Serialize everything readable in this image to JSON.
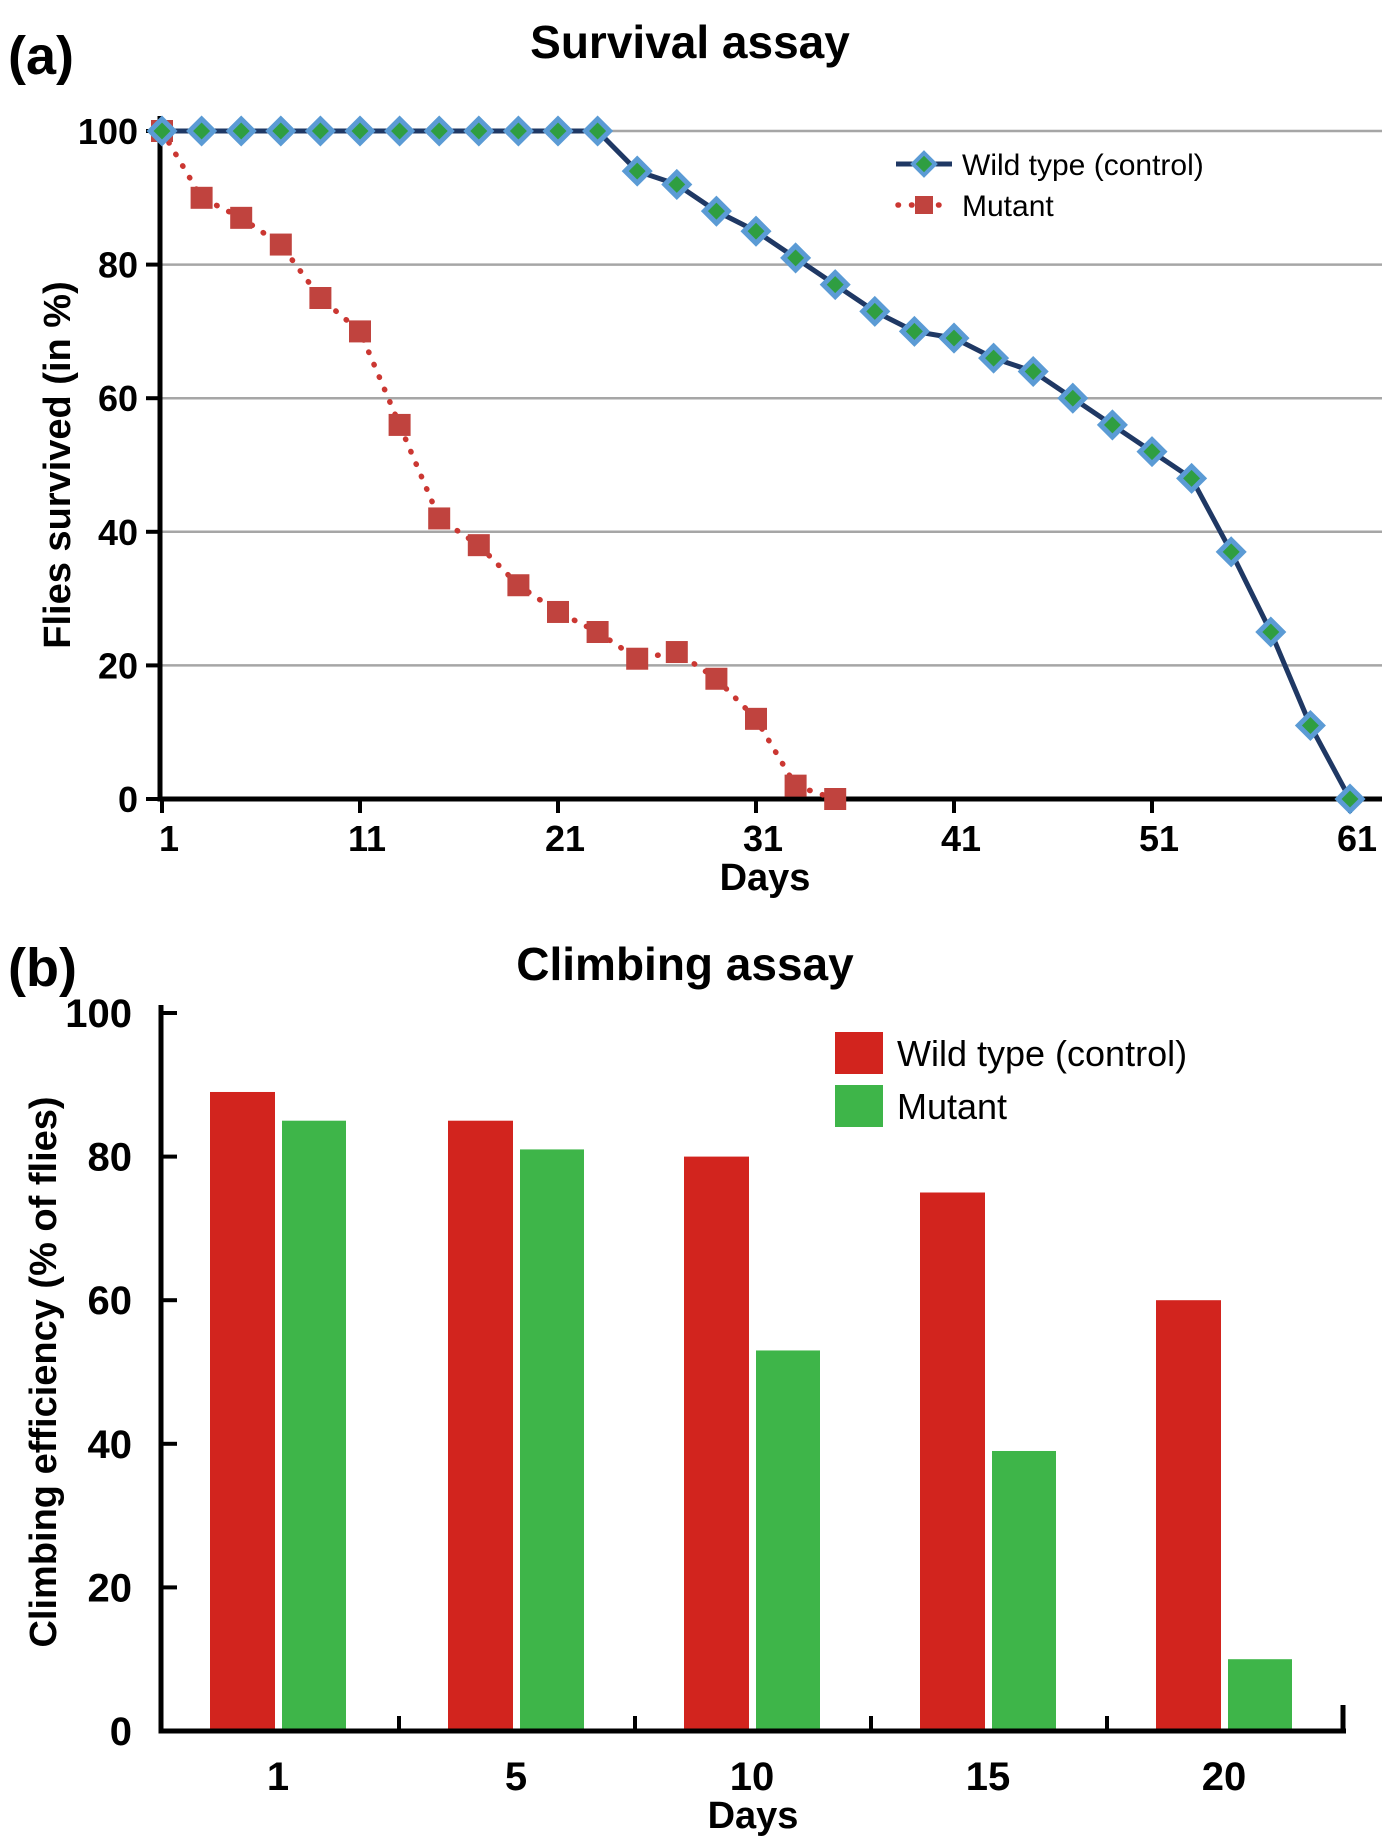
{
  "panel_a": {
    "label": "(a)"
  },
  "panel_b": {
    "label": "(b)"
  },
  "colors": {
    "wt_line": "#1F3864",
    "wt_marker_fill": "#2F9E41",
    "wt_marker_stroke": "#5B9BD5",
    "mutant_line": "#CB3732",
    "mutant_marker": "#C0433E",
    "bar_wt": "#D2241E",
    "bar_mutant": "#3EB549",
    "grid": "#A6A6A6",
    "axis": "#000000"
  },
  "chart_data": [
    {
      "type": "line",
      "title": "Survival assay",
      "xlabel": "Days",
      "ylabel": "Flies survived (in %)",
      "ylim": [
        0,
        100
      ],
      "y_ticks": [
        0,
        20,
        40,
        60,
        80,
        100
      ],
      "x_ticks": [
        1,
        11,
        21,
        31,
        41,
        51,
        61
      ],
      "grid": "horizontal",
      "legend_position": "top-right",
      "series": [
        {
          "name": "Wild type (control)",
          "marker": "diamond",
          "line_style": "solid",
          "x": [
            1,
            3,
            5,
            7,
            9,
            11,
            13,
            15,
            17,
            19,
            21,
            23,
            25,
            27,
            29,
            31,
            33,
            35,
            37,
            39,
            41,
            43,
            45,
            47,
            49,
            51,
            53,
            55,
            57,
            59,
            61
          ],
          "values": [
            100,
            100,
            100,
            100,
            100,
            100,
            100,
            100,
            100,
            100,
            100,
            100,
            94,
            92,
            88,
            85,
            81,
            77,
            73,
            70,
            69,
            66,
            64,
            60,
            56,
            52,
            48,
            37,
            25,
            11,
            0
          ]
        },
        {
          "name": "Mutant",
          "marker": "square",
          "line_style": "dotted",
          "x": [
            1,
            3,
            5,
            7,
            9,
            11,
            13,
            15,
            17,
            19,
            21,
            23,
            25,
            27,
            29,
            31,
            33,
            35
          ],
          "values": [
            100,
            90,
            87,
            83,
            75,
            70,
            56,
            42,
            38,
            32,
            28,
            25,
            21,
            22,
            18,
            12,
            2,
            0
          ]
        }
      ]
    },
    {
      "type": "bar",
      "title": "Climbing assay",
      "xlabel": "Days",
      "ylabel": "Climbing efficiency (% of flies)",
      "ylim": [
        0,
        100
      ],
      "y_ticks": [
        0,
        20,
        40,
        60,
        80,
        100
      ],
      "categories": [
        "1",
        "5",
        "10",
        "15",
        "20"
      ],
      "legend_position": "top-right",
      "series": [
        {
          "name": "Wild type (control)",
          "values": [
            89,
            85,
            80,
            75,
            60
          ]
        },
        {
          "name": "Mutant",
          "values": [
            85,
            81,
            53,
            39,
            10
          ]
        }
      ]
    }
  ]
}
